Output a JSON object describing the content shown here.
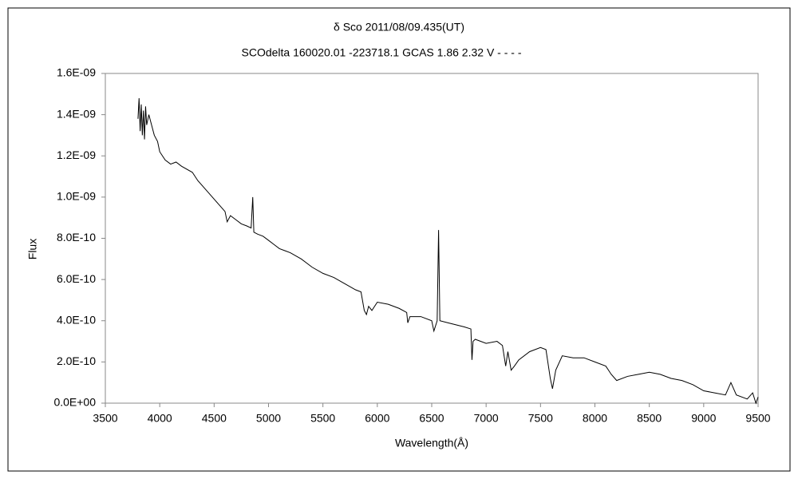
{
  "chart_data": {
    "type": "line",
    "title": "δ Sco    2011/08/09.435(UT)",
    "subtitle": "SCOdelta 160020.01 -223718.1 GCAS 1.86 2.32 V - - - -",
    "x_label": "Wavelength(Å)",
    "y_label": "Flux",
    "xlim": [
      3500,
      9500
    ],
    "xticks": [
      3500,
      4000,
      4500,
      5000,
      5500,
      6000,
      6500,
      7000,
      7500,
      8000,
      8500,
      9000,
      9500
    ],
    "ylim": [
      0,
      1.6e-09
    ],
    "yticks": [
      {
        "value": 0,
        "label": "0.0E+00"
      },
      {
        "value": 2e-10,
        "label": "2.0E-10"
      },
      {
        "value": 4e-10,
        "label": "4.0E-10"
      },
      {
        "value": 6e-10,
        "label": "6.0E-10"
      },
      {
        "value": 8e-10,
        "label": "8.0E-10"
      },
      {
        "value": 1e-09,
        "label": "1.0E-09"
      },
      {
        "value": 1.2e-09,
        "label": "1.2E-09"
      },
      {
        "value": 1.4e-09,
        "label": "1.4E-09"
      },
      {
        "value": 1.6e-09,
        "label": "1.6E-09"
      }
    ],
    "grid": false,
    "series": [
      {
        "color": "#000000",
        "x": [
          3800,
          3810,
          3820,
          3830,
          3840,
          3850,
          3860,
          3870,
          3880,
          3900,
          3920,
          3950,
          3980,
          4000,
          4050,
          4100,
          4150,
          4200,
          4300,
          4350,
          4400,
          4450,
          4500,
          4550,
          4600,
          4620,
          4650,
          4700,
          4750,
          4800,
          4840,
          4855,
          4865,
          4900,
          4950,
          5000,
          5050,
          5100,
          5150,
          5200,
          5300,
          5400,
          5500,
          5600,
          5700,
          5800,
          5850,
          5880,
          5900,
          5920,
          5950,
          6000,
          6100,
          6200,
          6270,
          6280,
          6300,
          6400,
          6500,
          6520,
          6550,
          6563,
          6575,
          6650,
          6800,
          6860,
          6870,
          6880,
          6900,
          7000,
          7100,
          7150,
          7180,
          7200,
          7230,
          7260,
          7300,
          7400,
          7500,
          7550,
          7590,
          7610,
          7640,
          7700,
          7800,
          7900,
          8000,
          8100,
          8150,
          8200,
          8300,
          8400,
          8500,
          8600,
          8700,
          8800,
          8900,
          9000,
          9100,
          9200,
          9250,
          9300,
          9400,
          9450,
          9480,
          9500
        ],
        "values": [
          1.38e-09,
          1.48e-09,
          1.32e-09,
          1.45e-09,
          1.3e-09,
          1.42e-09,
          1.28e-09,
          1.44e-09,
          1.35e-09,
          1.4e-09,
          1.36e-09,
          1.3e-09,
          1.27e-09,
          1.22e-09,
          1.18e-09,
          1.16e-09,
          1.17e-09,
          1.15e-09,
          1.12e-09,
          1.08e-09,
          1.05e-09,
          1.02e-09,
          9.9e-10,
          9.6e-10,
          9.3e-10,
          8.8e-10,
          9.1e-10,
          8.9e-10,
          8.7e-10,
          8.6e-10,
          8.5e-10,
          1e-09,
          8.3e-10,
          8.2e-10,
          8.1e-10,
          7.9e-10,
          7.7e-10,
          7.5e-10,
          7.4e-10,
          7.3e-10,
          7e-10,
          6.6e-10,
          6.3e-10,
          6.1e-10,
          5.8e-10,
          5.5e-10,
          5.4e-10,
          4.5e-10,
          4.3e-10,
          4.7e-10,
          4.5e-10,
          4.9e-10,
          4.8e-10,
          4.6e-10,
          4.4e-10,
          3.9e-10,
          4.2e-10,
          4.2e-10,
          4e-10,
          3.5e-10,
          4e-10,
          8.4e-10,
          4e-10,
          3.9e-10,
          3.7e-10,
          3.6e-10,
          2.1e-10,
          3e-10,
          3.1e-10,
          2.9e-10,
          3e-10,
          2.8e-10,
          1.8e-10,
          2.5e-10,
          1.6e-10,
          1.8e-10,
          2.1e-10,
          2.5e-10,
          2.7e-10,
          2.6e-10,
          1.2e-10,
          7e-11,
          1.6e-10,
          2.3e-10,
          2.2e-10,
          2.2e-10,
          2e-10,
          1.8e-10,
          1.4e-10,
          1.1e-10,
          1.3e-10,
          1.4e-10,
          1.5e-10,
          1.4e-10,
          1.2e-10,
          1.1e-10,
          9e-11,
          6e-11,
          5e-11,
          4e-11,
          1e-10,
          4e-11,
          2e-11,
          5e-11,
          0.0,
          3e-11
        ]
      }
    ]
  }
}
